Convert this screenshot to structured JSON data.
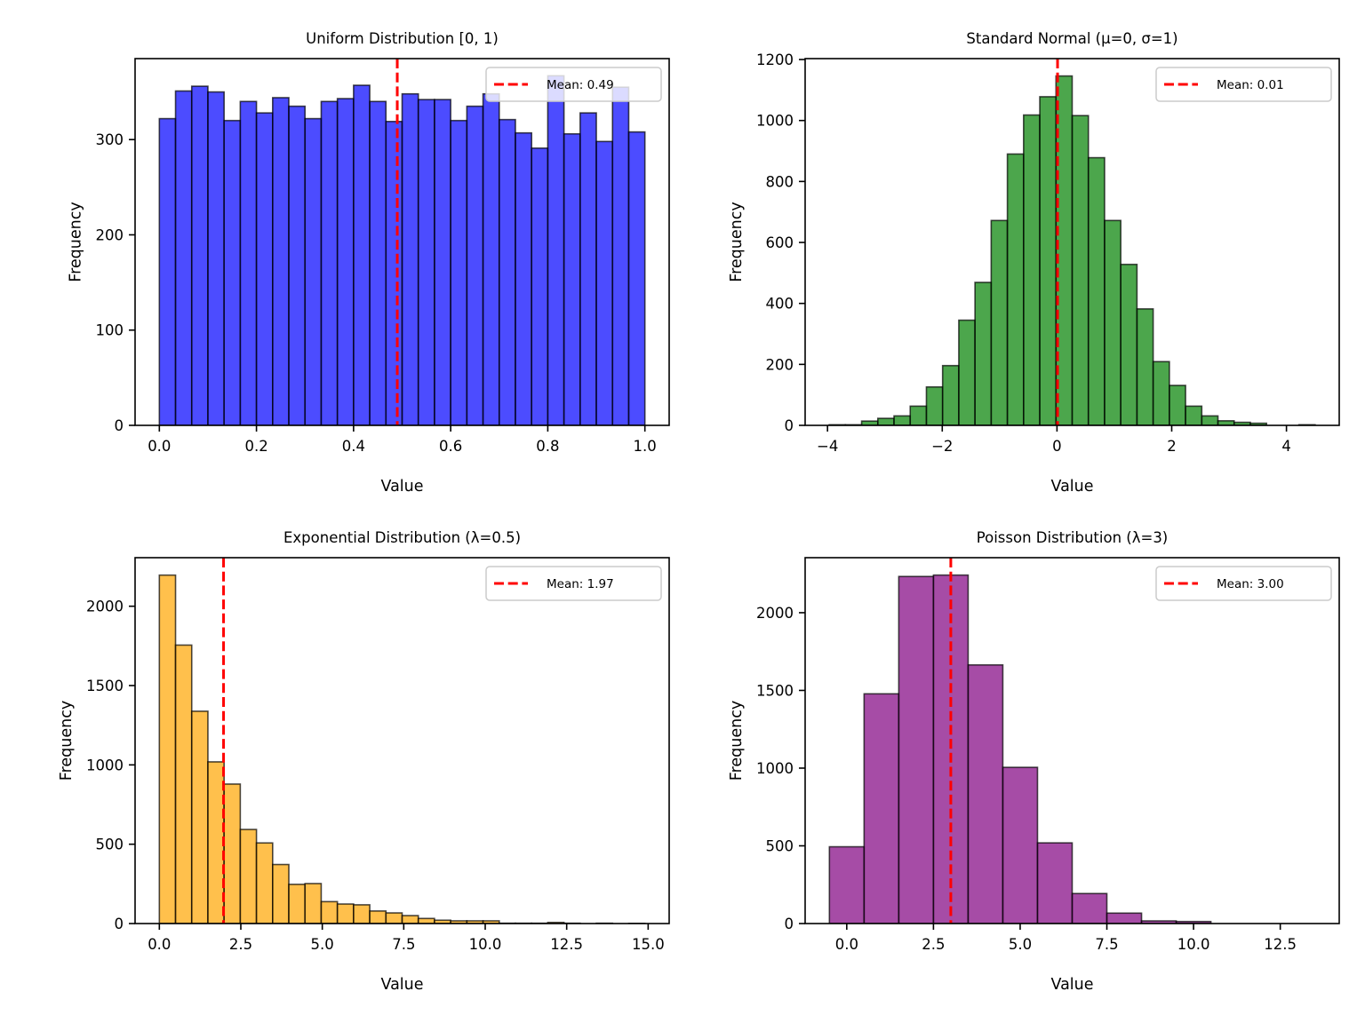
{
  "chart_data": [
    {
      "id": "uniform",
      "type": "bar",
      "histogram": true,
      "title": "Uniform Distribution [0, 1)",
      "xlabel": "Value",
      "ylabel": "Frequency",
      "color": "#0000ff",
      "bin_start": 0.0,
      "bin_end": 1.0,
      "values": [
        322,
        351,
        356,
        350,
        320,
        340,
        328,
        344,
        335,
        322,
        340,
        343,
        357,
        340,
        319,
        348,
        342,
        342,
        320,
        335,
        348,
        321,
        307,
        291,
        367,
        306,
        328,
        298,
        355,
        308
      ],
      "xlim": [
        -0.05,
        1.05
      ],
      "ylim": [
        0,
        385
      ],
      "xticks": [
        0.0,
        0.2,
        0.4,
        0.6,
        0.8,
        1.0
      ],
      "xtick_labels": [
        "0.0",
        "0.2",
        "0.4",
        "0.6",
        "0.8",
        "1.0"
      ],
      "yticks": [
        0,
        100,
        200,
        300
      ],
      "ytick_labels": [
        "0",
        "100",
        "200",
        "300"
      ],
      "mean": 0.49,
      "legend": {
        "label": "Mean: 0.49",
        "position": "top-right",
        "line_color": "#ff0000"
      }
    },
    {
      "id": "normal",
      "type": "bar",
      "histogram": true,
      "title": "Standard Normal (μ=0, σ=1)",
      "xlabel": "Value",
      "ylabel": "Frequency",
      "color": "#008000",
      "bin_start": -3.97,
      "bin_end": 4.5,
      "values": [
        2,
        2,
        14,
        23,
        31,
        63,
        126,
        196,
        345,
        469,
        672,
        890,
        1018,
        1078,
        1146,
        1016,
        878,
        672,
        528,
        382,
        209,
        131,
        63,
        31,
        15,
        10,
        7,
        0,
        0,
        2
      ],
      "xlim": [
        -4.39,
        4.92
      ],
      "ylim": [
        0,
        1203
      ],
      "xticks": [
        -4,
        -2,
        0,
        2,
        4
      ],
      "xtick_labels": [
        "−4",
        "−2",
        "0",
        "2",
        "4"
      ],
      "yticks": [
        0,
        200,
        400,
        600,
        800,
        1000,
        1200
      ],
      "ytick_labels": [
        "0",
        "200",
        "400",
        "600",
        "800",
        "1000",
        "1200"
      ],
      "mean": 0.01,
      "legend": {
        "label": "Mean: 0.01",
        "position": "top-right",
        "line_color": "#ff0000"
      }
    },
    {
      "id": "exponential",
      "type": "bar",
      "histogram": true,
      "title": "Exponential Distribution (λ=0.5)",
      "xlabel": "Value",
      "ylabel": "Frequency",
      "color": "#ffa500",
      "bin_start": 0.0,
      "bin_end": 14.9,
      "values": [
        2196,
        1755,
        1338,
        1019,
        879,
        593,
        508,
        372,
        247,
        252,
        138,
        123,
        118,
        79,
        67,
        50,
        32,
        21,
        17,
        17,
        17,
        2,
        2,
        2,
        7,
        2,
        0,
        2,
        0,
        1
      ],
      "xlim": [
        -0.745,
        15.645
      ],
      "ylim": [
        0,
        2306
      ],
      "xticks": [
        0.0,
        2.5,
        5.0,
        7.5,
        10.0,
        12.5,
        15.0
      ],
      "xtick_labels": [
        "0.0",
        "2.5",
        "5.0",
        "7.5",
        "10.0",
        "12.5",
        "15.0"
      ],
      "yticks": [
        0,
        500,
        1000,
        1500,
        2000
      ],
      "ytick_labels": [
        "0",
        "500",
        "1000",
        "1500",
        "2000"
      ],
      "mean": 1.97,
      "legend": {
        "label": "Mean: 1.97",
        "position": "top-right",
        "line_color": "#ff0000"
      }
    },
    {
      "id": "poisson",
      "type": "bar",
      "histogram": true,
      "title": "Poisson Distribution (λ=3)",
      "xlabel": "Value",
      "ylabel": "Frequency",
      "color": "#800080",
      "bin_start": -0.5,
      "bin_end": 13.5,
      "values": [
        494,
        1478,
        2233,
        2242,
        1664,
        1005,
        519,
        193,
        67,
        17,
        13,
        0,
        0,
        0
      ],
      "xlim": [
        -1.2,
        14.2
      ],
      "ylim": [
        0,
        2354
      ],
      "xticks": [
        0.0,
        2.5,
        5.0,
        7.5,
        10.0,
        12.5
      ],
      "xtick_labels": [
        "0.0",
        "2.5",
        "5.0",
        "7.5",
        "10.0",
        "12.5"
      ],
      "yticks": [
        0,
        500,
        1000,
        1500,
        2000
      ],
      "ytick_labels": [
        "0",
        "500",
        "1000",
        "1500",
        "2000"
      ],
      "mean": 3.0,
      "legend": {
        "label": "Mean: 3.00",
        "position": "top-right",
        "line_color": "#ff0000"
      }
    }
  ]
}
